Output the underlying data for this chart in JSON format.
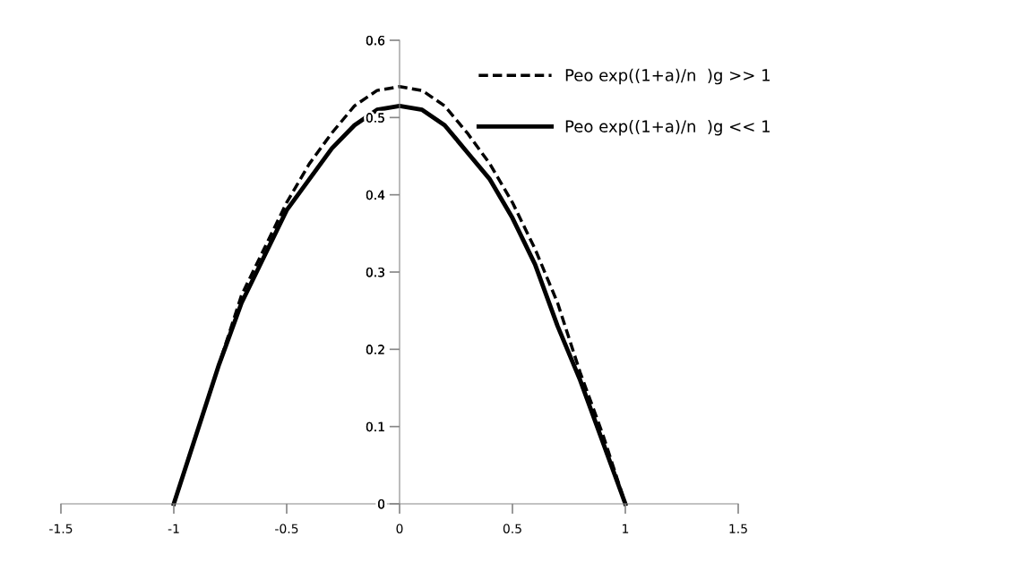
{
  "chart_data": {
    "type": "line",
    "x": [
      -1,
      -0.9,
      -0.8,
      -0.7,
      -0.6,
      -0.5,
      -0.4,
      -0.3,
      -0.2,
      -0.1,
      0,
      0.1,
      0.2,
      0.3,
      0.4,
      0.5,
      0.6,
      0.7,
      0.8,
      0.9,
      1
    ],
    "series": [
      {
        "name": "Peo exp((1+a)/n  )g >> 1",
        "color": "#000000",
        "line_style": "dashed",
        "values": [
          0,
          0.09,
          0.18,
          0.27,
          0.33,
          0.39,
          0.44,
          0.48,
          0.515,
          0.535,
          0.54,
          0.535,
          0.515,
          0.48,
          0.44,
          0.39,
          0.33,
          0.26,
          0.17,
          0.09,
          0
        ]
      },
      {
        "name": "Peo exp((1+a)/n  )g << 1",
        "color": "#000000",
        "line_style": "solid",
        "values": [
          0,
          0.09,
          0.18,
          0.26,
          0.32,
          0.38,
          0.42,
          0.46,
          0.49,
          0.51,
          0.515,
          0.51,
          0.49,
          0.455,
          0.42,
          0.37,
          0.31,
          0.23,
          0.16,
          0.08,
          0
        ]
      }
    ],
    "xlim": [
      -1.5,
      1.5
    ],
    "xticks": [
      -1.5,
      -1,
      -0.5,
      0,
      0.5,
      1,
      1.5
    ],
    "ylim": [
      0,
      0.6
    ],
    "yticks": [
      0,
      0.1,
      0.2,
      0.3,
      0.4,
      0.5,
      0.6
    ],
    "grid": false,
    "legend": "top right",
    "marker": "none"
  }
}
